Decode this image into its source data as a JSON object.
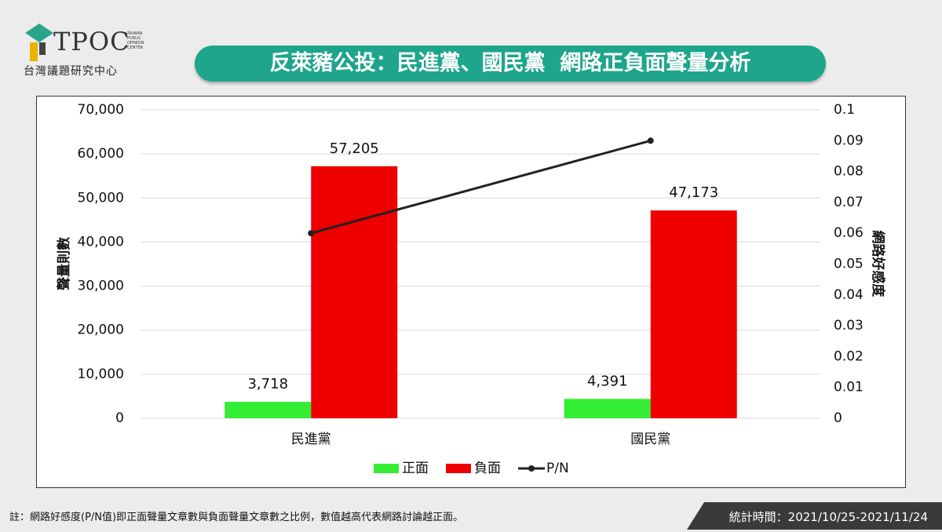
{
  "header": {
    "logo": "TPOC",
    "logo_tagline": "TAIWAN PUBLIC OPINION CENTER",
    "org_name": "台灣議題研究中心"
  },
  "chart_data": {
    "type": "bar",
    "title": "反萊豬公投：民進黨、國民黨  網路正負面聲量分析",
    "ylabel": "聲量則數",
    "y2label": "網路好感度",
    "categories": [
      "民進黨",
      "國民黨"
    ],
    "series": [
      {
        "name": "正面",
        "color": "#33ee33",
        "values": [
          3718,
          4391
        ],
        "value_labels": [
          "3,718",
          "4,391"
        ]
      },
      {
        "name": "負面",
        "color": "#ee0000",
        "values": [
          57205,
          47173
        ],
        "value_labels": [
          "57,205",
          "47,173"
        ]
      },
      {
        "name": "P/N",
        "color": "#222222",
        "type": "line",
        "axis": "y2",
        "values": [
          0.06,
          0.09
        ]
      }
    ],
    "ylim": [
      0,
      70000
    ],
    "yticks": [
      0,
      {
        "value": 10000,
        "label": "10,000"
      },
      {
        "value": 20000,
        "label": "20,000"
      },
      {
        "value": 30000,
        "label": "30,000"
      },
      {
        "value": 40000,
        "label": "40,000"
      },
      {
        "value": 50000,
        "label": "50,000"
      },
      {
        "value": 60000,
        "label": "60,000"
      },
      {
        "value": 70000,
        "label": "70,000"
      }
    ],
    "y2lim": [
      0,
      0.1
    ],
    "y2ticks": [
      0,
      0.01,
      0.02,
      0.03,
      0.04,
      0.05,
      0.06,
      0.07,
      0.08,
      0.09,
      0.1
    ],
    "grid": true,
    "legend": "bottom"
  },
  "footer": {
    "note": "註：網路好感度(P/N值)即正面聲量文章數與負面聲量文章數之比例，數值越高代表網路討論越正面。",
    "period": "統計時間：2021/10/25-2021/11/24"
  }
}
